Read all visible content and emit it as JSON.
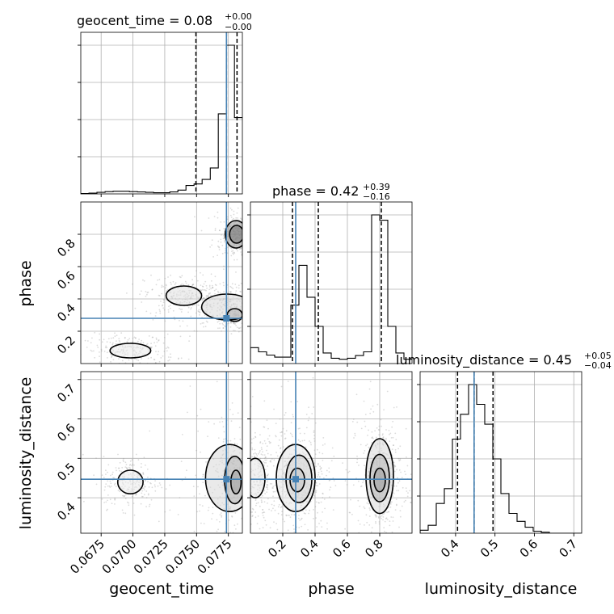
{
  "chart_data": {
    "type": "corner",
    "parameters": [
      "geocent_time",
      "phase",
      "luminosity_distance"
    ],
    "truths": {
      "geocent_time": 0.07735,
      "phase": 0.28,
      "luminosity_distance": 0.447
    },
    "colors": {
      "truth": "#4682b4",
      "hist": "#000000",
      "grid": "#b0b0b0",
      "quantile": "#000000"
    },
    "grid": true,
    "titles": [
      {
        "param": "geocent_time",
        "label": "geocent_time = 0.08",
        "sup": "+0.00",
        "sub": "−0.00"
      },
      {
        "param": "phase",
        "label": "phase = 0.42",
        "sup": "+0.39",
        "sub": "−0.16"
      },
      {
        "param": "luminosity_distance",
        "label": "luminosity_distance = 0.45",
        "sup": "+0.05",
        "sub": "−0.04"
      }
    ],
    "axes": {
      "geocent_time": {
        "range": [
          0.0659,
          0.0786
        ],
        "ticks": [
          0.0675,
          0.07,
          0.0725,
          0.075,
          0.0775
        ],
        "tick_labels": [
          "0.0675",
          "0.0700",
          "0.0725",
          "0.0750",
          "0.0775"
        ]
      },
      "phase": {
        "range": [
          0.0,
          1.0
        ],
        "ticks": [
          0.2,
          0.4,
          0.6,
          0.8
        ],
        "tick_labels": [
          "0.2",
          "0.4",
          "0.6",
          "0.8"
        ]
      },
      "luminosity_distance": {
        "range": [
          0.31,
          0.72
        ],
        "ticks": [
          0.4,
          0.5,
          0.6,
          0.7
        ],
        "tick_labels": [
          "0.4",
          "0.5",
          "0.6",
          "0.7"
        ]
      }
    },
    "histograms": {
      "geocent_time": {
        "edges": [
          0.0659,
          0.06654,
          0.06717,
          0.06781,
          0.06844,
          0.06908,
          0.06972,
          0.07035,
          0.07099,
          0.07162,
          0.07226,
          0.0729,
          0.07353,
          0.07417,
          0.0748,
          0.07544,
          0.07608,
          0.07671,
          0.07735,
          0.07798,
          0.0786
        ],
        "counts": [
          1,
          2,
          4,
          6,
          7,
          7,
          6,
          5,
          4,
          3,
          3,
          5,
          10,
          22,
          26,
          38,
          68,
          210,
          390,
          200
        ],
        "quantiles": [
          0.07495,
          0.07735,
          0.07818
        ]
      },
      "phase": {
        "edges": [
          0,
          0.05,
          0.1,
          0.15,
          0.2,
          0.25,
          0.3,
          0.35,
          0.4,
          0.45,
          0.5,
          0.55,
          0.6,
          0.65,
          0.7,
          0.75,
          0.8,
          0.85,
          0.9,
          0.95,
          1.0
        ],
        "counts": [
          30,
          22,
          16,
          12,
          12,
          110,
          185,
          125,
          70,
          20,
          10,
          8,
          10,
          15,
          22,
          280,
          270,
          70,
          20,
          8
        ],
        "quantiles": [
          0.26,
          0.42,
          0.81
        ]
      },
      "luminosity_distance": {
        "edges": [
          0.31,
          0.3305,
          0.351,
          0.3715,
          0.392,
          0.4125,
          0.433,
          0.4535,
          0.474,
          0.4945,
          0.515,
          0.5355,
          0.556,
          0.5765,
          0.597,
          0.6175,
          0.638,
          0.6585,
          0.679,
          0.6995,
          0.72
        ],
        "counts": [
          3,
          8,
          30,
          45,
          95,
          120,
          150,
          130,
          110,
          75,
          40,
          20,
          12,
          6,
          2,
          1,
          0,
          0,
          0,
          0
        ],
        "quantiles": [
          0.405,
          0.447,
          0.495
        ]
      }
    },
    "contours_2d": [
      {
        "x": "geocent_time",
        "y": "phase",
        "levels": [
          {
            "cx": 0.07815,
            "cy": 0.8,
            "rx": 0.00055,
            "ry": 0.055,
            "shade": 0.75
          },
          {
            "cx": 0.0781,
            "cy": 0.8,
            "rx": 0.00085,
            "ry": 0.085,
            "shade": 0.4
          },
          {
            "cx": 0.078,
            "cy": 0.3,
            "rx": 0.0006,
            "ry": 0.04,
            "shade": 0.5
          },
          {
            "cx": 0.0774,
            "cy": 0.35,
            "rx": 0.002,
            "ry": 0.08,
            "shade": 0.15
          },
          {
            "cx": 0.074,
            "cy": 0.42,
            "rx": 0.0014,
            "ry": 0.06,
            "shade": 0.12
          },
          {
            "cx": 0.0698,
            "cy": 0.08,
            "rx": 0.0016,
            "ry": 0.045,
            "shade": 0.08
          }
        ]
      },
      {
        "x": "geocent_time",
        "y": "luminosity_distance",
        "levels": [
          {
            "cx": 0.0781,
            "cy": 0.44,
            "rx": 0.0004,
            "ry": 0.03,
            "shade": 0.85
          },
          {
            "cx": 0.078,
            "cy": 0.445,
            "rx": 0.0008,
            "ry": 0.06,
            "shade": 0.45
          },
          {
            "cx": 0.0776,
            "cy": 0.45,
            "rx": 0.0019,
            "ry": 0.085,
            "shade": 0.15
          },
          {
            "cx": 0.0698,
            "cy": 0.44,
            "rx": 0.001,
            "ry": 0.03,
            "shade": 0.08
          }
        ]
      },
      {
        "x": "phase",
        "y": "luminosity_distance",
        "levels": [
          {
            "cx": 0.8,
            "cy": 0.445,
            "rx": 0.035,
            "ry": 0.03,
            "shade": 0.9
          },
          {
            "cx": 0.8,
            "cy": 0.45,
            "rx": 0.06,
            "ry": 0.06,
            "shade": 0.45
          },
          {
            "cx": 0.8,
            "cy": 0.455,
            "rx": 0.085,
            "ry": 0.095,
            "shade": 0.15
          },
          {
            "cx": 0.29,
            "cy": 0.445,
            "rx": 0.045,
            "ry": 0.03,
            "shade": 0.55
          },
          {
            "cx": 0.3,
            "cy": 0.448,
            "rx": 0.08,
            "ry": 0.06,
            "shade": 0.25
          },
          {
            "cx": 0.28,
            "cy": 0.45,
            "rx": 0.12,
            "ry": 0.085,
            "shade": 0.1
          },
          {
            "cx": 0.03,
            "cy": 0.45,
            "rx": 0.06,
            "ry": 0.05,
            "shade": 0.1
          }
        ]
      }
    ]
  }
}
